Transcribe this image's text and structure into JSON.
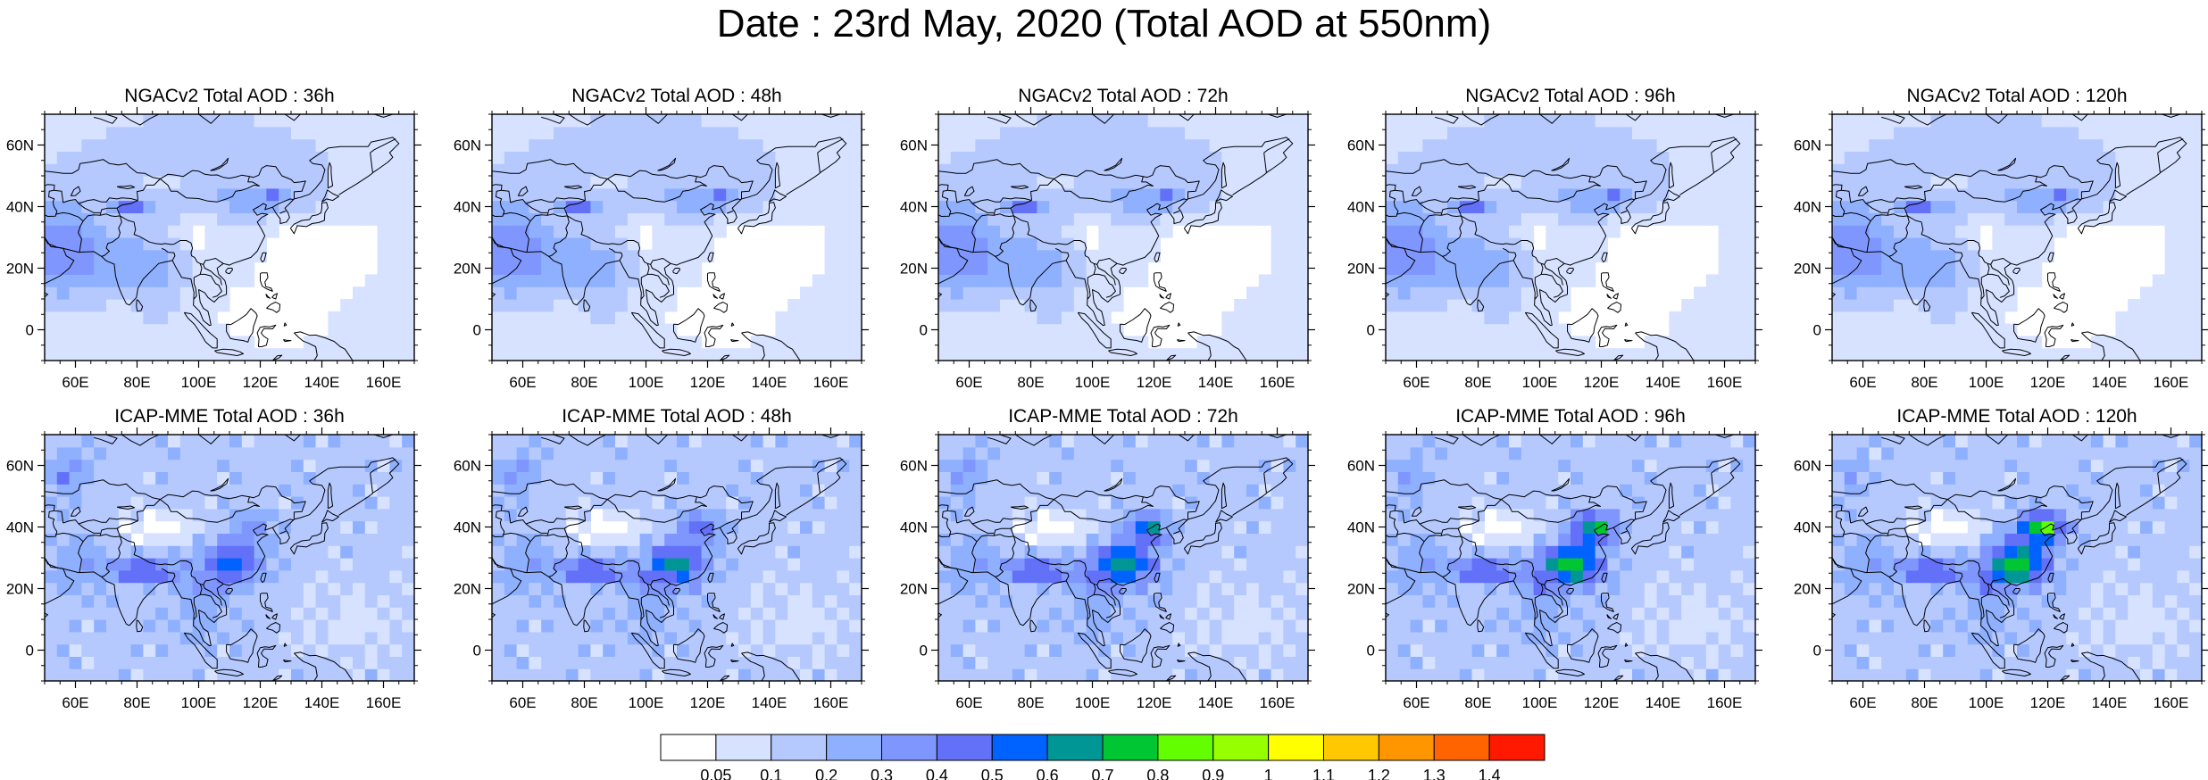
{
  "figure": {
    "title": "Date : 23rd May, 2020 (Total AOD at 550nm)"
  },
  "panels": [
    {
      "row": 0,
      "col": 0,
      "title": "NGACv2 Total AOD : 36h"
    },
    {
      "row": 0,
      "col": 1,
      "title": "NGACv2 Total AOD : 48h"
    },
    {
      "row": 0,
      "col": 2,
      "title": "NGACv2 Total AOD : 72h"
    },
    {
      "row": 0,
      "col": 3,
      "title": "NGACv2 Total AOD : 96h"
    },
    {
      "row": 0,
      "col": 4,
      "title": "NGACv2 Total AOD : 120h"
    },
    {
      "row": 1,
      "col": 0,
      "title": "ICAP-MME Total AOD : 36h"
    },
    {
      "row": 1,
      "col": 1,
      "title": "ICAP-MME Total AOD : 48h"
    },
    {
      "row": 1,
      "col": 2,
      "title": "ICAP-MME Total AOD : 72h"
    },
    {
      "row": 1,
      "col": 3,
      "title": "ICAP-MME Total AOD : 96h"
    },
    {
      "row": 1,
      "col": 4,
      "title": "ICAP-MME Total AOD : 120h"
    }
  ],
  "axes": {
    "lon_range": [
      50,
      170
    ],
    "lat_range": [
      -10,
      70
    ],
    "x_ticks": [
      {
        "value": 60,
        "label": "60E"
      },
      {
        "value": 80,
        "label": "80E"
      },
      {
        "value": 100,
        "label": "100E"
      },
      {
        "value": 120,
        "label": "120E"
      },
      {
        "value": 140,
        "label": "140E"
      },
      {
        "value": 160,
        "label": "160E"
      }
    ],
    "y_ticks": [
      {
        "value": 60,
        "label": "60N"
      },
      {
        "value": 40,
        "label": "40N"
      },
      {
        "value": 20,
        "label": "20N"
      },
      {
        "value": 0,
        "label": "0"
      }
    ]
  },
  "colorbar": {
    "labels": [
      "0.05",
      "0.1",
      "0.2",
      "0.3",
      "0.4",
      "0.5",
      "0.6",
      "0.7",
      "0.8",
      "0.9",
      "1",
      "1.1",
      "1.2",
      "1.3",
      "1.4"
    ],
    "colors": [
      "#ffffff",
      "#d6e2ff",
      "#b5c9ff",
      "#8fb0ff",
      "#7f96ff",
      "#6370f8",
      "#0063ff",
      "#009696",
      "#00c633",
      "#63ff00",
      "#96ff00",
      "#ffff00",
      "#ffc800",
      "#ff9600",
      "#ff6400",
      "#ff1900"
    ]
  },
  "chart_data": {
    "type": "heatmap",
    "title": "Date : 23rd May, 2020 (Total AOD at 550nm)",
    "variable": "Total AOD at 550nm",
    "models": [
      "NGACv2",
      "ICAP-MME"
    ],
    "lead_times": [
      "36h",
      "48h",
      "72h",
      "96h",
      "120h"
    ],
    "xlim": [
      50,
      170
    ],
    "ylim": [
      -10,
      70
    ],
    "color_levels": [
      0.05,
      0.1,
      0.2,
      0.3,
      0.4,
      0.5,
      0.6,
      0.7,
      0.8,
      0.9,
      1,
      1.1,
      1.2,
      1.3,
      1.4
    ],
    "legend_position": "bottom",
    "grid": false
  }
}
